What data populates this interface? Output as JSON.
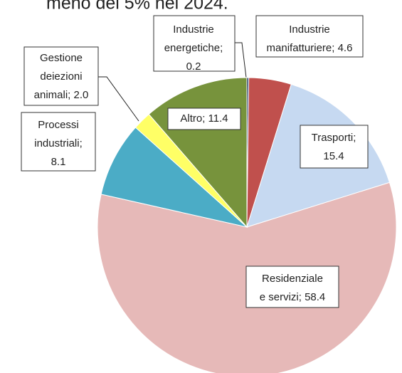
{
  "chart_data": {
    "type": "pie",
    "caption": "meno del 5% nel 2024.",
    "values": [
      0.2,
      4.6,
      15.4,
      58.4,
      8.1,
      2.0,
      11.4
    ],
    "labels": [
      [
        "Industrie",
        "energetiche;",
        "0.2"
      ],
      [
        "Industrie",
        "manifatturiere; 4.6"
      ],
      [
        "Trasporti;",
        "15.4"
      ],
      [
        "Residenziale",
        "e servizi; 58.4"
      ],
      [
        "Processi",
        "industriali;",
        "8.1"
      ],
      [
        "Gestione",
        "deiezioni",
        "animali; 2.0"
      ],
      [
        "Altro; 11.4"
      ]
    ],
    "colors": [
      "#1f3864",
      "#c0504d",
      "#c6d9f1",
      "#e6b9b8",
      "#4bacc6",
      "#ffff66",
      "#77933c"
    ]
  }
}
